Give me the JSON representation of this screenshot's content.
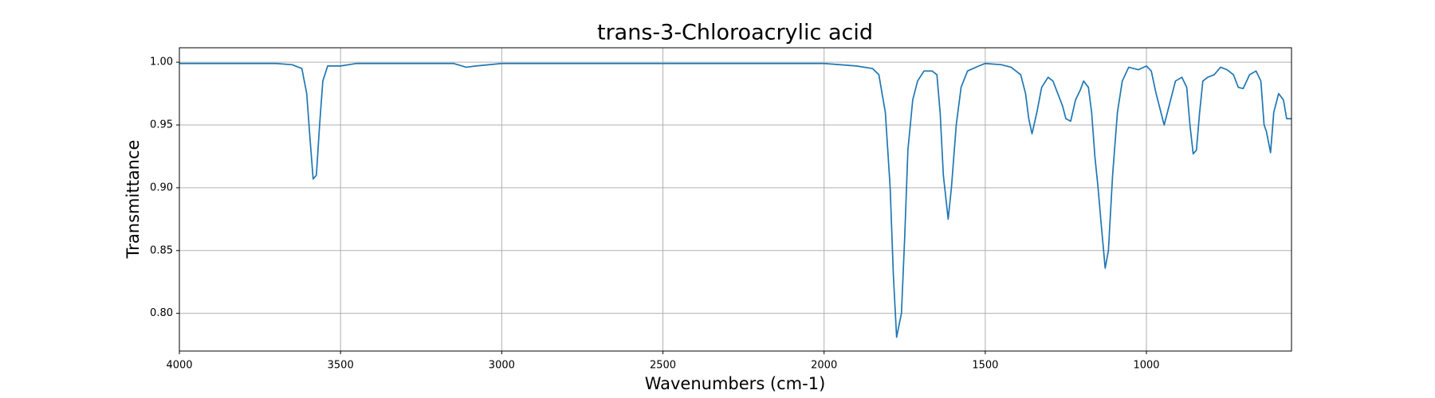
{
  "chart_data": {
    "type": "line",
    "title": "trans-3-Chloroacrylic acid",
    "xlabel": "Wavenumbers (cm-1)",
    "ylabel": "Transmittance",
    "x": [
      4000,
      3900,
      3800,
      3700,
      3650,
      3620,
      3605,
      3595,
      3585,
      3575,
      3565,
      3555,
      3540,
      3500,
      3450,
      3300,
      3150,
      3110,
      3080,
      3000,
      2800,
      2600,
      2400,
      2200,
      2000,
      1900,
      1850,
      1830,
      1810,
      1795,
      1785,
      1775,
      1768,
      1760,
      1750,
      1740,
      1725,
      1710,
      1690,
      1665,
      1650,
      1640,
      1630,
      1615,
      1605,
      1590,
      1575,
      1555,
      1520,
      1500,
      1450,
      1420,
      1390,
      1375,
      1365,
      1355,
      1340,
      1325,
      1305,
      1290,
      1275,
      1260,
      1250,
      1235,
      1220,
      1205,
      1195,
      1180,
      1170,
      1160,
      1150,
      1140,
      1128,
      1118,
      1105,
      1090,
      1075,
      1055,
      1040,
      1025,
      1000,
      985,
      970,
      955,
      945,
      930,
      910,
      890,
      875,
      865,
      855,
      845,
      835,
      825,
      810,
      790,
      770,
      750,
      730,
      715,
      700,
      680,
      660,
      645,
      635,
      628,
      615,
      605,
      590,
      575,
      565,
      550
    ],
    "series": [
      {
        "name": "trans-3-Chloroacrylic acid",
        "color": "#1f77b4",
        "values": [
          0.999,
          0.999,
          0.999,
          0.999,
          0.998,
          0.995,
          0.975,
          0.94,
          0.907,
          0.91,
          0.95,
          0.985,
          0.997,
          0.997,
          0.999,
          0.999,
          0.999,
          0.996,
          0.997,
          0.999,
          0.999,
          0.999,
          0.999,
          0.999,
          0.999,
          0.997,
          0.995,
          0.99,
          0.96,
          0.9,
          0.83,
          0.781,
          0.79,
          0.8,
          0.86,
          0.93,
          0.97,
          0.985,
          0.993,
          0.993,
          0.99,
          0.96,
          0.91,
          0.875,
          0.9,
          0.95,
          0.98,
          0.993,
          0.997,
          0.999,
          0.998,
          0.996,
          0.99,
          0.975,
          0.955,
          0.943,
          0.96,
          0.98,
          0.988,
          0.985,
          0.975,
          0.965,
          0.955,
          0.953,
          0.97,
          0.978,
          0.985,
          0.98,
          0.96,
          0.925,
          0.9,
          0.87,
          0.836,
          0.85,
          0.91,
          0.96,
          0.985,
          0.996,
          0.995,
          0.994,
          0.997,
          0.993,
          0.975,
          0.96,
          0.95,
          0.965,
          0.985,
          0.988,
          0.98,
          0.95,
          0.927,
          0.93,
          0.96,
          0.985,
          0.988,
          0.99,
          0.996,
          0.994,
          0.99,
          0.98,
          0.979,
          0.99,
          0.993,
          0.985,
          0.95,
          0.945,
          0.928,
          0.96,
          0.975,
          0.97,
          0.955,
          0.955
        ]
      }
    ],
    "xlim": [
      4000,
      550
    ],
    "ylim": [
      0.77,
      1.0115
    ],
    "xticks": [
      4000,
      3500,
      3000,
      2500,
      2000,
      1500,
      1000
    ],
    "yticks": [
      {
        "value": 0.8,
        "label": "0.80"
      },
      0.85,
      {
        "value": 0.9,
        "label": "0.90"
      },
      0.95,
      {
        "value": 1,
        "label": "1.00"
      }
    ],
    "grid": true
  }
}
